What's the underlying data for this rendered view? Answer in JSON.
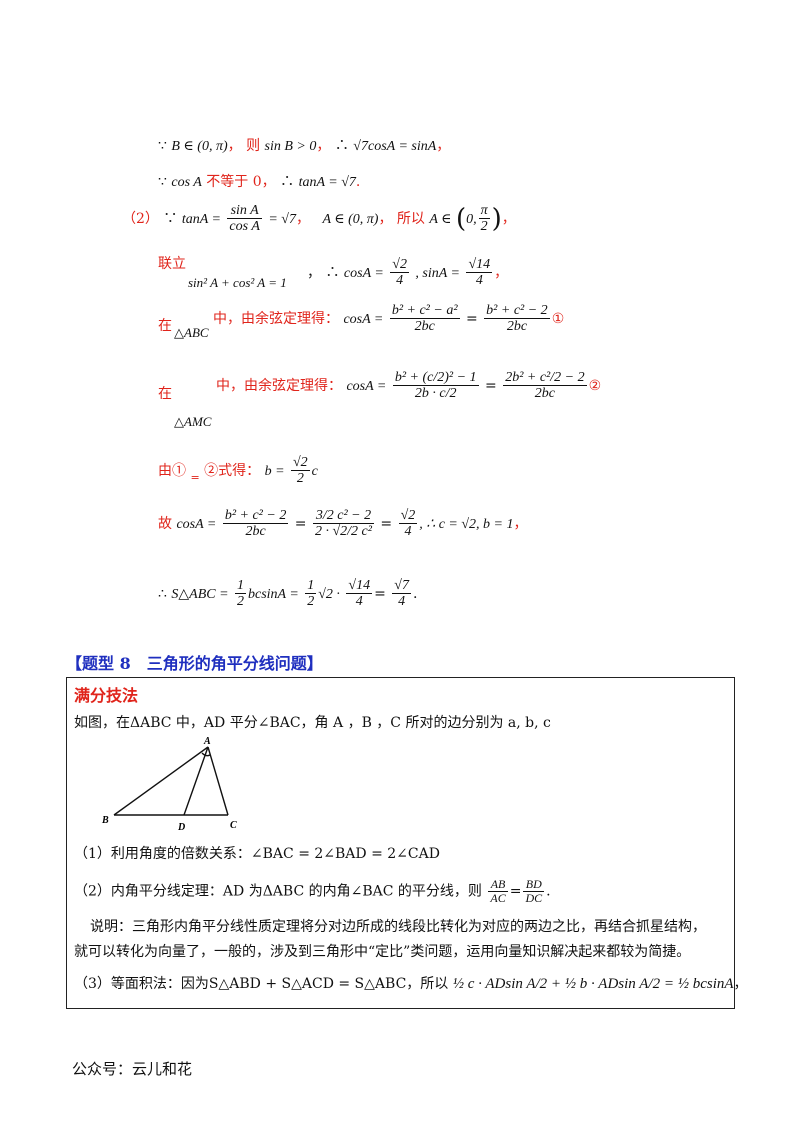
{
  "solution": {
    "l1": {
      "because": "∵",
      "b_in": "B ∈ (0, π)",
      "sep1": "，",
      "then": "则",
      "sinb": "sin B > 0",
      "sep2": "，",
      "therefore": "∴",
      "eq": "√7cosA = sinA",
      "end": "，"
    },
    "l2": {
      "because": "∵",
      "cosa": "cos A",
      "not_eq": "不等于 0",
      "sep": "，",
      "therefore": "∴",
      "tan": "tanA = √7",
      "end": "."
    },
    "l3": {
      "num": "（2）",
      "because": "∵",
      "tan": "tanA =",
      "frac_top": "sin A",
      "frac_bot": "cos A",
      "tail": "= √7",
      "sep": "，",
      "range": "A ∈ (0, π)",
      "sep2": "，",
      "so": "所以",
      "a_in": "A ∈",
      "pi_top": "π",
      "pi_bot": "2",
      "end": "，"
    },
    "l4": {
      "lianli": "联立",
      "eq": "sin² A + cos² A = 1",
      "sep": "，",
      "therefore": "∴",
      "cos_lbl": "cosA =",
      "cos_top": "√2",
      "cos_bot": "4",
      "sin_lbl": ", sinA =",
      "sin_top": "√14",
      "sin_bot": "4",
      "end": "，"
    },
    "l5": {
      "zai": "在",
      "tri": "△ABC",
      "text": "中，由余弦定理得：",
      "cos_lbl": "cosA =",
      "f1_top": "b² + c² − a²",
      "f1_bot": "2bc",
      "f2_top": "b² + c² − 2",
      "f2_bot": "2bc",
      "mark": "①"
    },
    "l6": {
      "zai": "在",
      "tri": "△AMC",
      "text": "中，由余弦定理得：",
      "cos_lbl": "cosA =",
      "f1_top": "b² + (c/2)² − 1",
      "f1_bot": "2b · c/2",
      "f2_top": "2b² + c²/2 − 2",
      "f2_bot": "2bc",
      "mark": "②"
    },
    "l7": {
      "you": "由①",
      "eq_mark": "=",
      "text": "②式得：",
      "b_lbl": "b =",
      "top": "√2",
      "bot": "2",
      "c": "c"
    },
    "l8": {
      "gu": "故",
      "cos_lbl": "cosA =",
      "f1_top": "b² + c² − 2",
      "f1_bot": "2bc",
      "f2_top": "3/2 c² − 2",
      "f2_bot": "2 · √2/2 c²",
      "tail_top": "√2",
      "tail_bot": "4",
      "tail": ", ∴ c = √2, b = 1",
      "end": "，"
    },
    "l9": {
      "therefore": "∴",
      "s": "S△ABC =",
      "h_top": "1",
      "h_bot": "2",
      "mid": "bcsinA =",
      "h2_top": "1",
      "h2_bot": "2",
      "mid2": "√2 ·",
      "r_top": "√14",
      "r_bot": "4",
      "eq": "=",
      "ans_top": "√7",
      "ans_bot": "4",
      "end": "."
    }
  },
  "section": {
    "title": "【题型 8　三角形的角平分线问题】"
  },
  "box": {
    "heading": "满分技法",
    "intro": "如图，在ΔABC 中，AD 平分∠BAC，角 A ，B ，C 所对的边分别为 a, b, c",
    "figure": {
      "A": "A",
      "B": "B",
      "C": "C",
      "D": "D"
    },
    "p1": "（1）利用角度的倍数关系：∠BAC = 2∠BAD = 2∠CAD",
    "p2_a": "（2）内角平分线定理：AD 为ΔABC 的内角∠BAC 的平分线，则",
    "p2_f1_top": "AB",
    "p2_f1_bot": "AC",
    "p2_eq": "=",
    "p2_f2_top": "BD",
    "p2_f2_bot": "DC",
    "p2_end": ".",
    "note1": "说明：三角形内角平分线性质定理将分对边所成的线段比转化为对应的两边之比，再结合抓星结构，",
    "note2": "就可以转化为向量了，一般的，涉及到三角形中“定比”类问题，运用向量知识解决起来都较为简捷。",
    "p3_a": "（3）等面积法：因为S△ABD + S△ACD = S△ABC，所以",
    "p3_expr": "½ c · ADsin A/2 + ½ b · ADsin A/2 = ½ bcsinA",
    "p3_end": "，"
  },
  "footer": {
    "text": "公众号：云儿和花"
  }
}
